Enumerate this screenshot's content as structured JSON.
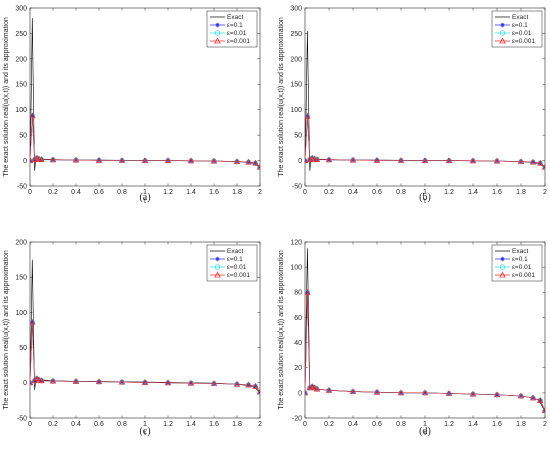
{
  "chart_data": [
    {
      "type": "line",
      "caption": "(a)",
      "xlabel": "t",
      "ylabel": "The exact solution real(u(x,t)) and its approximation",
      "xlim": [
        0,
        2
      ],
      "ylim": [
        -50,
        300
      ],
      "xticks": [
        0,
        0.2,
        0.4,
        0.6,
        0.8,
        1,
        1.2,
        1.4,
        1.6,
        1.8,
        2
      ],
      "xtick_labels": [
        "0",
        "0.2",
        "0.4",
        "0.6",
        "0.8",
        "1",
        "1.2",
        "1.4",
        "1.6",
        "1.8",
        "2"
      ],
      "yticks": [
        -50,
        0,
        50,
        100,
        150,
        200,
        250,
        300
      ],
      "ytick_labels": [
        "-50",
        "0",
        "50",
        "100",
        "150",
        "200",
        "250",
        "300"
      ],
      "legend_position": "top-right",
      "grid": false,
      "series": [
        {
          "name": "Exact",
          "color": "#000000",
          "marker": "none",
          "x": [
            0,
            0.01,
            0.02,
            0.03,
            0.04,
            0.05,
            0.07,
            0.1,
            0.2,
            0.4,
            0.6,
            0.8,
            1.0,
            1.2,
            1.4,
            1.6,
            1.8,
            1.9,
            1.95,
            2
          ],
          "y": [
            0,
            120,
            280,
            120,
            -20,
            2,
            6,
            3,
            2,
            1,
            1,
            0.5,
            0,
            0,
            -0.5,
            -1,
            -2,
            -4,
            -6,
            -14
          ]
        },
        {
          "name": "ε=0.1",
          "color": "#2222ee",
          "marker": "asterisk",
          "x": [
            0,
            0.02,
            0.04,
            0.06,
            0.08,
            0.1,
            0.2,
            0.4,
            0.6,
            0.8,
            1.0,
            1.2,
            1.4,
            1.6,
            1.8,
            1.9,
            1.96,
            2
          ],
          "y": [
            0,
            88,
            2,
            5,
            3,
            2,
            1.5,
            1,
            0.5,
            0.2,
            0,
            0,
            -0.5,
            -1,
            -2,
            -3,
            -5,
            -13
          ]
        },
        {
          "name": "ε=0.01",
          "color": "#22dddd",
          "marker": "circle",
          "x": [
            0,
            0.02,
            0.04,
            0.06,
            0.08,
            0.1,
            0.2,
            0.4,
            0.6,
            0.8,
            1.0,
            1.2,
            1.4,
            1.6,
            1.8,
            1.9,
            1.96,
            2
          ],
          "y": [
            0,
            88,
            2,
            5,
            3,
            2,
            1.5,
            1,
            0.5,
            0.2,
            0,
            0,
            -0.5,
            -1,
            -2,
            -3,
            -5,
            -13
          ]
        },
        {
          "name": "ε=0.001",
          "color": "#ee2222",
          "marker": "triangle",
          "x": [
            0,
            0.02,
            0.04,
            0.06,
            0.08,
            0.1,
            0.2,
            0.4,
            0.6,
            0.8,
            1.0,
            1.2,
            1.4,
            1.6,
            1.8,
            1.9,
            1.96,
            2
          ],
          "y": [
            0,
            88,
            2,
            5,
            3,
            2,
            1.5,
            1,
            0.5,
            0.2,
            0,
            0,
            -0.5,
            -1,
            -2,
            -3,
            -5,
            -13
          ]
        }
      ]
    },
    {
      "type": "line",
      "caption": "(b)",
      "xlabel": "t",
      "ylabel": "The exact solution real(u(x,t)) and its approximation",
      "xlim": [
        0,
        2
      ],
      "ylim": [
        -50,
        300
      ],
      "xticks": [
        0,
        0.2,
        0.4,
        0.6,
        0.8,
        1,
        1.2,
        1.4,
        1.6,
        1.8,
        2
      ],
      "xtick_labels": [
        "0",
        "0.2",
        "0.4",
        "0.6",
        "0.8",
        "1",
        "1.2",
        "1.4",
        "1.6",
        "1.8",
        "2"
      ],
      "yticks": [
        -50,
        0,
        50,
        100,
        150,
        200,
        250,
        300
      ],
      "ytick_labels": [
        "-50",
        "0",
        "50",
        "100",
        "150",
        "200",
        "250",
        "300"
      ],
      "legend_position": "top-right",
      "grid": false,
      "series": [
        {
          "name": "Exact",
          "color": "#000000",
          "marker": "none",
          "x": [
            0,
            0.01,
            0.02,
            0.03,
            0.04,
            0.05,
            0.07,
            0.1,
            0.2,
            0.4,
            0.6,
            0.8,
            1.0,
            1.2,
            1.4,
            1.6,
            1.8,
            1.9,
            1.95,
            2
          ],
          "y": [
            0,
            110,
            255,
            110,
            -20,
            2,
            6,
            3,
            2,
            1,
            1,
            0.5,
            0,
            0,
            -0.5,
            -1,
            -2,
            -4,
            -6,
            -14
          ]
        },
        {
          "name": "ε=0.1",
          "color": "#2222ee",
          "marker": "asterisk",
          "x": [
            0,
            0.02,
            0.04,
            0.06,
            0.08,
            0.1,
            0.2,
            0.4,
            0.6,
            0.8,
            1.0,
            1.2,
            1.4,
            1.6,
            1.8,
            1.9,
            1.96,
            2
          ],
          "y": [
            0,
            87,
            2,
            5,
            3,
            2,
            1.5,
            1,
            0.5,
            0.2,
            0,
            0,
            -0.5,
            -1,
            -2,
            -3,
            -5,
            -13
          ]
        },
        {
          "name": "ε=0.01",
          "color": "#22dddd",
          "marker": "circle",
          "x": [
            0,
            0.02,
            0.04,
            0.06,
            0.08,
            0.1,
            0.2,
            0.4,
            0.6,
            0.8,
            1.0,
            1.2,
            1.4,
            1.6,
            1.8,
            1.9,
            1.96,
            2
          ],
          "y": [
            0,
            87,
            2,
            5,
            3,
            2,
            1.5,
            1,
            0.5,
            0.2,
            0,
            0,
            -0.5,
            -1,
            -2,
            -3,
            -5,
            -13
          ]
        },
        {
          "name": "ε=0.001",
          "color": "#ee2222",
          "marker": "triangle",
          "x": [
            0,
            0.02,
            0.04,
            0.06,
            0.08,
            0.1,
            0.2,
            0.4,
            0.6,
            0.8,
            1.0,
            1.2,
            1.4,
            1.6,
            1.8,
            1.9,
            1.96,
            2
          ],
          "y": [
            0,
            87,
            2,
            5,
            3,
            2,
            1.5,
            1,
            0.5,
            0.2,
            0,
            0,
            -0.5,
            -1,
            -2,
            -3,
            -5,
            -13
          ]
        }
      ]
    },
    {
      "type": "line",
      "caption": "(c)",
      "xlabel": "t",
      "ylabel": "The exact solution real(u(x,t)) and its approximation",
      "xlim": [
        0,
        2
      ],
      "ylim": [
        -50,
        200
      ],
      "xticks": [
        0,
        0.2,
        0.4,
        0.6,
        0.8,
        1,
        1.2,
        1.4,
        1.6,
        1.8,
        2
      ],
      "xtick_labels": [
        "0",
        "0.2",
        "0.4",
        "0.6",
        "0.8",
        "1",
        "1.2",
        "1.4",
        "1.6",
        "1.8",
        "2"
      ],
      "yticks": [
        -50,
        0,
        50,
        100,
        150,
        200
      ],
      "ytick_labels": [
        "-50",
        "0",
        "50",
        "100",
        "150",
        "200"
      ],
      "legend_position": "top-right",
      "grid": false,
      "series": [
        {
          "name": "Exact",
          "color": "#000000",
          "marker": "none",
          "x": [
            0,
            0.01,
            0.02,
            0.03,
            0.04,
            0.05,
            0.07,
            0.1,
            0.2,
            0.4,
            0.6,
            0.8,
            1.0,
            1.2,
            1.4,
            1.6,
            1.8,
            1.9,
            1.95,
            2
          ],
          "y": [
            0,
            80,
            175,
            80,
            -10,
            3,
            6,
            4,
            3,
            2,
            2,
            1.5,
            1,
            0.5,
            0,
            -0.5,
            -2,
            -4,
            -6,
            -14
          ]
        },
        {
          "name": "ε=0.1",
          "color": "#2222ee",
          "marker": "asterisk",
          "x": [
            0,
            0.02,
            0.04,
            0.06,
            0.08,
            0.1,
            0.2,
            0.4,
            0.6,
            0.8,
            1.0,
            1.2,
            1.4,
            1.6,
            1.8,
            1.9,
            1.96,
            2
          ],
          "y": [
            0,
            86,
            3,
            6,
            4,
            3,
            2.5,
            2,
            1.5,
            1,
            0.5,
            0,
            -0.5,
            -1,
            -2,
            -3,
            -5,
            -13
          ]
        },
        {
          "name": "ε=0.01",
          "color": "#22dddd",
          "marker": "circle",
          "x": [
            0,
            0.02,
            0.04,
            0.06,
            0.08,
            0.1,
            0.2,
            0.4,
            0.6,
            0.8,
            1.0,
            1.2,
            1.4,
            1.6,
            1.8,
            1.9,
            1.96,
            2
          ],
          "y": [
            0,
            86,
            3,
            6,
            4,
            3,
            2.5,
            2,
            1.5,
            1,
            0.5,
            0,
            -0.5,
            -1,
            -2,
            -3,
            -5,
            -13
          ]
        },
        {
          "name": "ε=0.001",
          "color": "#ee2222",
          "marker": "triangle",
          "x": [
            0,
            0.02,
            0.04,
            0.06,
            0.08,
            0.1,
            0.2,
            0.4,
            0.6,
            0.8,
            1.0,
            1.2,
            1.4,
            1.6,
            1.8,
            1.9,
            1.96,
            2
          ],
          "y": [
            0,
            86,
            3,
            6,
            4,
            3,
            2.5,
            2,
            1.5,
            1,
            0.5,
            0,
            -0.5,
            -1,
            -2,
            -3,
            -5,
            -13
          ]
        }
      ]
    },
    {
      "type": "line",
      "caption": "(d)",
      "xlabel": "t",
      "ylabel": "The exact solution real(u(x,t)) and its approximation",
      "xlim": [
        0,
        2
      ],
      "ylim": [
        -20,
        120
      ],
      "xticks": [
        0,
        0.2,
        0.4,
        0.6,
        0.8,
        1,
        1.2,
        1.4,
        1.6,
        1.8,
        2
      ],
      "xtick_labels": [
        "0",
        "0.2",
        "0.4",
        "0.6",
        "0.8",
        "1",
        "1.2",
        "1.4",
        "1.6",
        "1.8",
        "2"
      ],
      "yticks": [
        -20,
        0,
        20,
        40,
        60,
        80,
        100,
        120
      ],
      "ytick_labels": [
        "-20",
        "0",
        "20",
        "40",
        "60",
        "80",
        "100",
        "120"
      ],
      "legend_position": "top-right",
      "grid": false,
      "series": [
        {
          "name": "Exact",
          "color": "#000000",
          "marker": "none",
          "x": [
            0,
            0.01,
            0.02,
            0.03,
            0.04,
            0.06,
            0.08,
            0.1,
            0.2,
            0.4,
            0.6,
            0.8,
            1.0,
            1.2,
            1.4,
            1.6,
            1.8,
            1.9,
            1.95,
            2
          ],
          "y": [
            0,
            60,
            115,
            60,
            5,
            4,
            5,
            3,
            2,
            1,
            0.5,
            0,
            0,
            -0.5,
            -1,
            -1.5,
            -2.5,
            -4,
            -6,
            -15
          ]
        },
        {
          "name": "ε=0.1",
          "color": "#2222ee",
          "marker": "asterisk",
          "x": [
            0,
            0.02,
            0.04,
            0.06,
            0.08,
            0.1,
            0.2,
            0.4,
            0.6,
            0.8,
            1.0,
            1.2,
            1.4,
            1.6,
            1.8,
            1.9,
            1.96,
            2
          ],
          "y": [
            0,
            80,
            4,
            5,
            4,
            3,
            2,
            1,
            0.5,
            0,
            0,
            -0.5,
            -1,
            -1.5,
            -2.5,
            -4,
            -6,
            -14
          ]
        },
        {
          "name": "ε=0.01",
          "color": "#22dddd",
          "marker": "circle",
          "x": [
            0,
            0.02,
            0.04,
            0.06,
            0.08,
            0.1,
            0.2,
            0.4,
            0.6,
            0.8,
            1.0,
            1.2,
            1.4,
            1.6,
            1.8,
            1.9,
            1.96,
            2
          ],
          "y": [
            0,
            80,
            4,
            5,
            4,
            3,
            2,
            1,
            0.5,
            0,
            0,
            -0.5,
            -1,
            -1.5,
            -2.5,
            -4,
            -6,
            -14
          ]
        },
        {
          "name": "ε=0.001",
          "color": "#ee2222",
          "marker": "triangle",
          "x": [
            0,
            0.02,
            0.04,
            0.06,
            0.08,
            0.1,
            0.2,
            0.4,
            0.6,
            0.8,
            1.0,
            1.2,
            1.4,
            1.6,
            1.8,
            1.9,
            1.96,
            2
          ],
          "y": [
            0,
            80,
            4,
            5,
            4,
            3,
            2,
            1,
            0.5,
            0,
            0,
            -0.5,
            -1,
            -1.5,
            -2.5,
            -4,
            -6,
            -14
          ]
        }
      ]
    }
  ]
}
